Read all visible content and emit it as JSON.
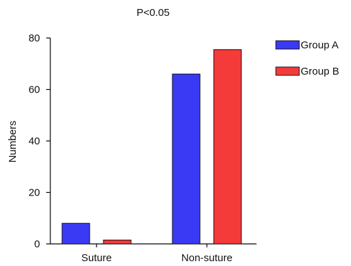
{
  "chart_data": {
    "type": "bar",
    "title": "P<0.05",
    "ylabel": "Numbers",
    "xlabel": "",
    "categories": [
      "Suture",
      "Non-suture"
    ],
    "series": [
      {
        "name": "Group A",
        "values": [
          8,
          66
        ],
        "color": "#3a3af5"
      },
      {
        "name": "Group B",
        "values": [
          1.5,
          75.5
        ],
        "color": "#f53a3a"
      }
    ],
    "ylim": [
      0,
      80
    ],
    "yticks": [
      0,
      20,
      40,
      60,
      80
    ],
    "grid": false,
    "legend": "top-right"
  }
}
